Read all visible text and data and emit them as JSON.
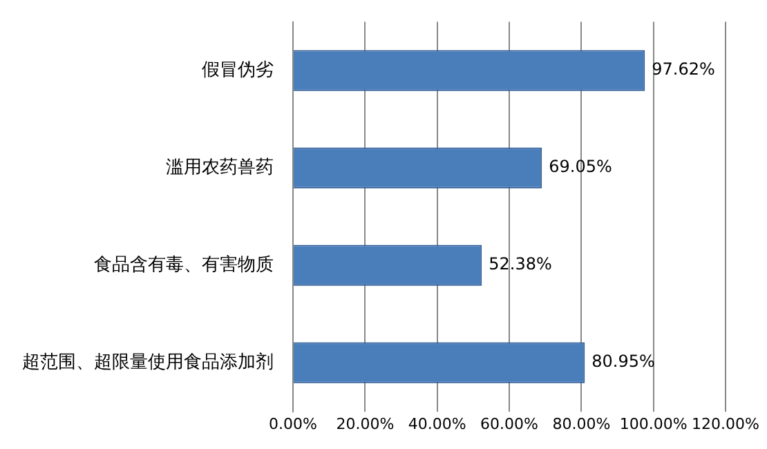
{
  "chart_data": {
    "type": "bar",
    "orientation": "horizontal",
    "categories": [
      "假冒伪劣",
      "滥用农药兽药",
      "食品含有毒、有害物质",
      "超范围、超限量使用食品添加剂"
    ],
    "values": [
      97.62,
      69.05,
      52.38,
      80.95
    ],
    "value_labels": [
      "97.62%",
      "69.05%",
      "52.38%",
      "80.95%"
    ],
    "color": "#4a7ebb",
    "xlim": [
      0,
      120
    ],
    "xticks": [
      {
        "value": 0,
        "label": "0.00%"
      },
      {
        "value": 20,
        "label": "20.00%"
      },
      {
        "value": 40,
        "label": "40.00%"
      },
      {
        "value": 60,
        "label": "60.00%"
      },
      {
        "value": 80,
        "label": "80.00%"
      },
      {
        "value": 100,
        "label": "100.00%"
      },
      {
        "value": 120,
        "label": "120.00%"
      }
    ],
    "grid": "x",
    "legend": false
  }
}
